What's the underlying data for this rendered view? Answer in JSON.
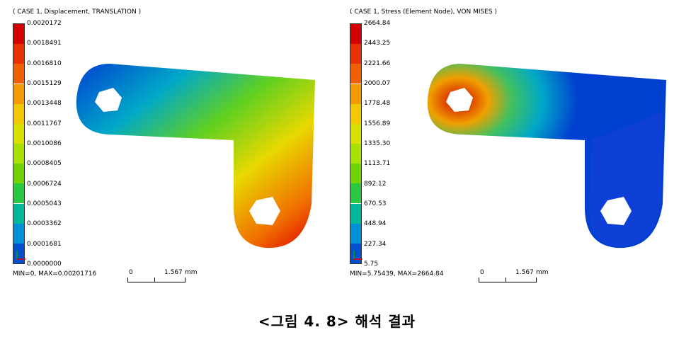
{
  "left": {
    "title": "( CASE 1, Displacement, TRANSLATION )",
    "legend_ticks": [
      "0.0020172",
      "0.0018491",
      "0.0016810",
      "0.0015129",
      "0.0013448",
      "0.0011767",
      "0.0010086",
      "0.0008405",
      "0.0006724",
      "0.0005043",
      "0.0003362",
      "0.0001681",
      "0.0000000"
    ],
    "minmax": "MIN=0, MAX=0.00201716",
    "scale": {
      "zero": "0",
      "value": "1.567",
      "unit": "mm"
    }
  },
  "right": {
    "title": "( CASE 1, Stress (Element Node), VON MISES )",
    "legend_ticks": [
      "2664.84",
      "2443.25",
      "2221.66",
      "2000.07",
      "1778.48",
      "1556.89",
      "1335.30",
      "1113.71",
      "892.12",
      "670.53",
      "448.94",
      "227.34",
      "5.75"
    ],
    "minmax": "MIN=5.75439, MAX=2664.84",
    "scale": {
      "zero": "0",
      "value": "1.567",
      "unit": "mm"
    }
  },
  "caption": "<그림 4. 8> 해석 결과",
  "colors": {
    "legend": [
      "#d40000",
      "#e83000",
      "#f06000",
      "#f29a00",
      "#f2c800",
      "#d8e000",
      "#a8e000",
      "#70d400",
      "#28c840",
      "#00b89a",
      "#0090d8",
      "#0050d0",
      "#0020c0"
    ]
  }
}
